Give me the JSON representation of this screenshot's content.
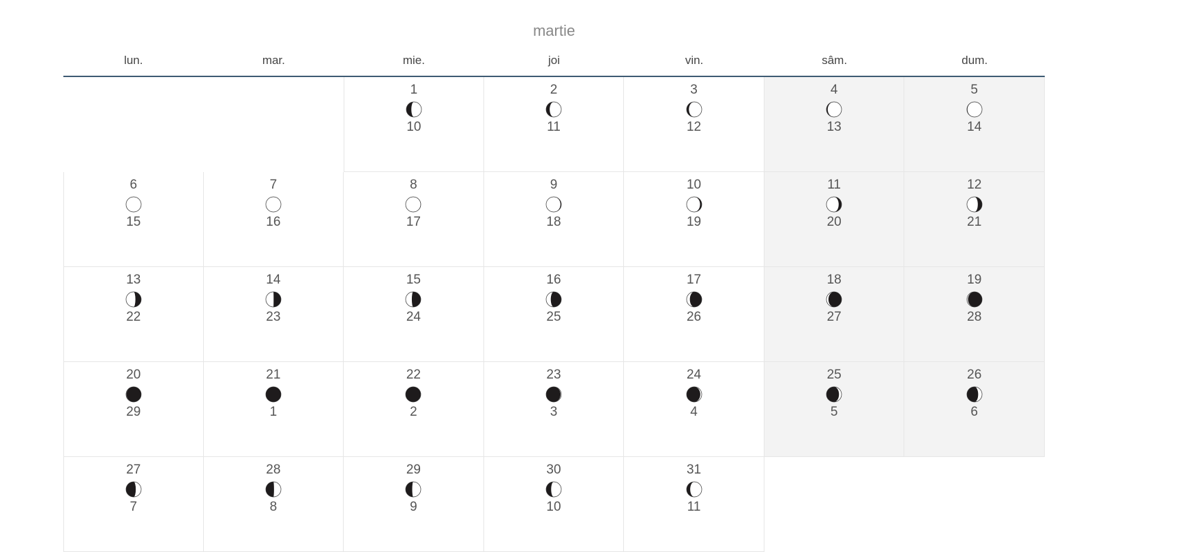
{
  "calendar": {
    "month": "martie",
    "weekdays": [
      "lun.",
      "mar.",
      "mie.",
      "joi",
      "vin.",
      "sâm.",
      "dum."
    ],
    "weeks": [
      [
        null,
        null,
        {
          "day": "1",
          "lunar": "10"
        },
        {
          "day": "2",
          "lunar": "11"
        },
        {
          "day": "3",
          "lunar": "12"
        },
        {
          "day": "4",
          "lunar": "13"
        },
        {
          "day": "5",
          "lunar": "14"
        }
      ],
      [
        {
          "day": "6",
          "lunar": "15"
        },
        {
          "day": "7",
          "lunar": "16"
        },
        {
          "day": "8",
          "lunar": "17"
        },
        {
          "day": "9",
          "lunar": "18"
        },
        {
          "day": "10",
          "lunar": "19"
        },
        {
          "day": "11",
          "lunar": "20"
        },
        {
          "day": "12",
          "lunar": "21"
        }
      ],
      [
        {
          "day": "13",
          "lunar": "22"
        },
        {
          "day": "14",
          "lunar": "23"
        },
        {
          "day": "15",
          "lunar": "24"
        },
        {
          "day": "16",
          "lunar": "25"
        },
        {
          "day": "17",
          "lunar": "26"
        },
        {
          "day": "18",
          "lunar": "27"
        },
        {
          "day": "19",
          "lunar": "28"
        }
      ],
      [
        {
          "day": "20",
          "lunar": "29"
        },
        {
          "day": "21",
          "lunar": "1"
        },
        {
          "day": "22",
          "lunar": "2"
        },
        {
          "day": "23",
          "lunar": "3"
        },
        {
          "day": "24",
          "lunar": "4"
        },
        {
          "day": "25",
          "lunar": "5"
        },
        {
          "day": "26",
          "lunar": "6"
        }
      ],
      [
        {
          "day": "27",
          "lunar": "7"
        },
        {
          "day": "28",
          "lunar": "8"
        },
        {
          "day": "29",
          "lunar": "9"
        },
        {
          "day": "30",
          "lunar": "10"
        },
        {
          "day": "31",
          "lunar": "11"
        },
        null,
        null
      ]
    ]
  },
  "colors": {
    "weekend_bg": "#f3f3f3",
    "header_rule": "#3e5a72",
    "moon_dark": "#1e1b1c"
  }
}
